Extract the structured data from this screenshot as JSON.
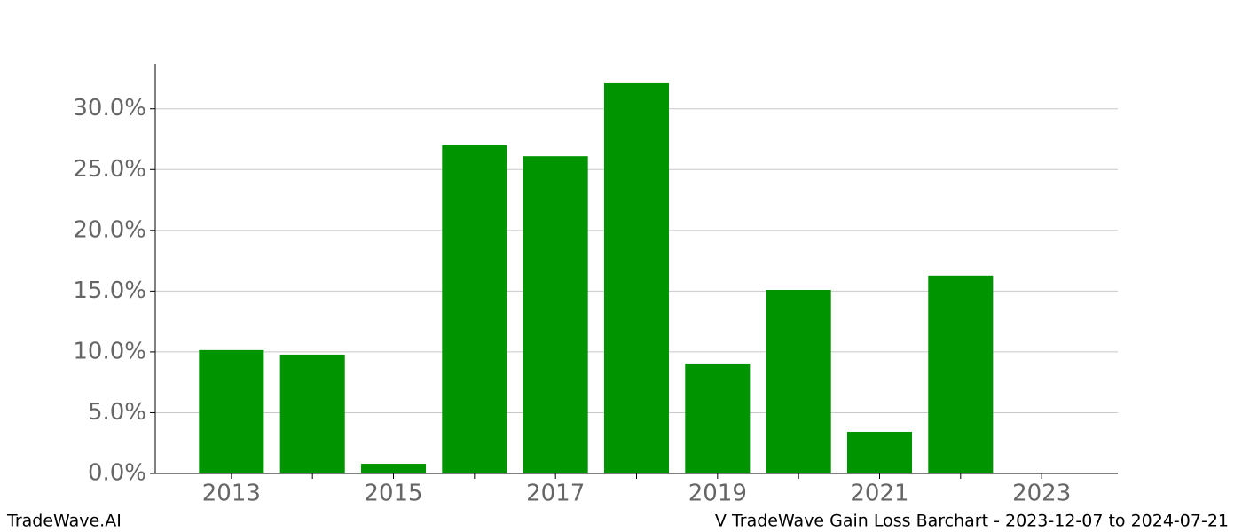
{
  "chart_data": {
    "type": "bar",
    "title": "V TradeWave Gain Loss Barchart - 2023-12-07 to 2024-07-21",
    "watermark": "TradeWave.AI",
    "x": [
      2013,
      2014,
      2015,
      2016,
      2017,
      2018,
      2019,
      2020,
      2021,
      2022,
      2023
    ],
    "values": [
      10.15,
      9.78,
      0.8,
      27.0,
      26.1,
      32.1,
      9.05,
      15.1,
      3.43,
      16.28,
      0
    ],
    "color": "#009400",
    "bar_width": 0.8,
    "xlim": [
      2012.06,
      2023.94
    ],
    "xticks": [
      2013,
      2015,
      2017,
      2019,
      2021,
      2023
    ],
    "xminorticks": [
      2014,
      2016,
      2018,
      2020,
      2022
    ],
    "ylim": [
      0,
      33.7
    ],
    "yticks": [
      {
        "value": 0,
        "label": "0.0%"
      },
      {
        "value": 5,
        "label": "5.0%"
      },
      {
        "value": 10,
        "label": "10.0%"
      },
      {
        "value": 15,
        "label": "15.0%"
      },
      {
        "value": 20,
        "label": "20.0%"
      },
      {
        "value": 25,
        "label": "25.0%"
      },
      {
        "value": 30,
        "label": "30.0%"
      }
    ],
    "grid": true
  }
}
